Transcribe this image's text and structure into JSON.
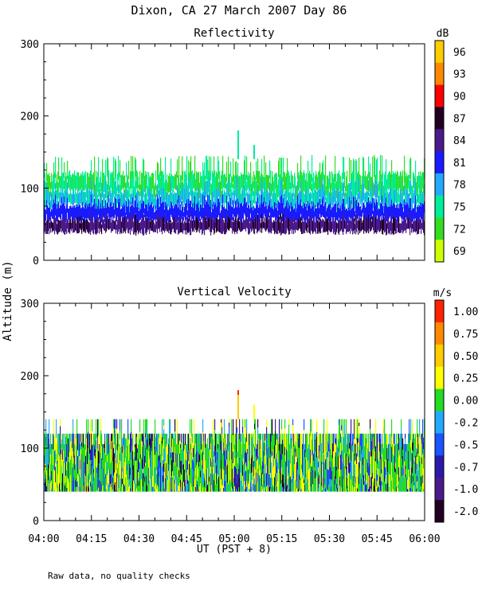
{
  "figure": {
    "title": "Dixon, CA 27 March 2007  Day  86",
    "ylabel": "Altitude (m)",
    "xlabel": "UT  (PST + 8)",
    "footnote": "Raw data, no quality checks"
  },
  "chart_data": [
    {
      "type": "heatmap",
      "title": "Reflectivity",
      "ylabel": "Altitude (m)",
      "xlabel": "UT  (PST + 8)",
      "ylim": [
        0,
        300
      ],
      "yticks": [
        0,
        100,
        200,
        300
      ],
      "x_start": "04:00",
      "x_end": "06:00",
      "colorbar": {
        "unit": "dB",
        "labels": [
          "96",
          "93",
          "90",
          "87",
          "84",
          "81",
          "78",
          "75",
          "72",
          "69"
        ],
        "colors": [
          "#ffcc00",
          "#ff8800",
          "#ff0000",
          "#220022",
          "#4a1a8a",
          "#1a1aff",
          "#22aaff",
          "#00ee99",
          "#33dd22",
          "#ccff00"
        ]
      },
      "data_summary": {
        "signal_base_m": 40,
        "typical_top_m": 120,
        "occasional_top_m": 140,
        "max_spike_m": 180,
        "max_spike_time": "05:01"
      }
    },
    {
      "type": "heatmap",
      "title": "Vertical Velocity",
      "ylabel": "Altitude (m)",
      "xlabel": "UT  (PST + 8)",
      "ylim": [
        0,
        300
      ],
      "yticks": [
        0,
        100,
        200,
        300
      ],
      "x_start": "04:00",
      "x_end": "06:00",
      "colorbar": {
        "unit": "m/s",
        "labels": [
          "1.00",
          "0.75",
          "0.50",
          "0.25",
          "0.00",
          "-0.25",
          "-0.50",
          "-0.75",
          "-1.00",
          "-2.00"
        ],
        "colors": [
          "#ff2200",
          "#ff8800",
          "#ffcc00",
          "#ffff00",
          "#22dd22",
          "#22aaff",
          "#1a55ff",
          "#2a1aaa",
          "#4a1a8a",
          "#220022"
        ]
      },
      "data_summary": {
        "signal_base_m": 40,
        "typical_top_m": 120,
        "occasional_top_m": 140,
        "max_spike_m": 180,
        "max_spike_time": "05:01"
      }
    }
  ],
  "x_axis": {
    "tick_labels": [
      "04:00",
      "04:15",
      "04:30",
      "04:45",
      "05:00",
      "05:15",
      "05:30",
      "05:45",
      "06:00"
    ]
  }
}
